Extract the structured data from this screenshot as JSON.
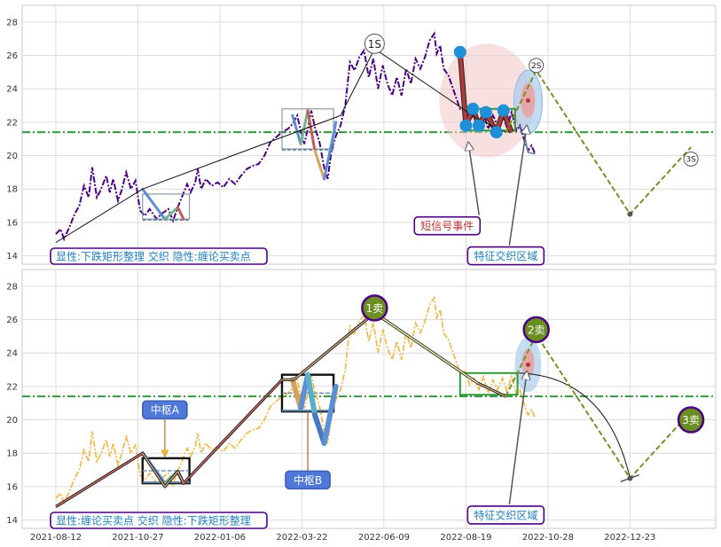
{
  "chart_data": [
    {
      "type": "line",
      "panel": "top",
      "ylim": [
        13.5,
        29
      ],
      "yticks": [
        14,
        16,
        18,
        20,
        22,
        24,
        26,
        28
      ],
      "grid": true,
      "reference_line": 21.4,
      "price": [
        [
          0,
          15.3
        ],
        [
          4,
          15.6
        ],
        [
          7,
          15.0
        ],
        [
          12,
          15.8
        ],
        [
          16,
          16.5
        ],
        [
          20,
          17.0
        ],
        [
          24,
          18.2
        ],
        [
          28,
          17.5
        ],
        [
          31,
          19.3
        ],
        [
          35,
          17.5
        ],
        [
          38,
          17.9
        ],
        [
          43,
          18.8
        ],
        [
          46,
          17.8
        ],
        [
          49,
          18.6
        ],
        [
          53,
          17.3
        ],
        [
          56,
          17.9
        ],
        [
          60,
          19.0
        ],
        [
          64,
          18.0
        ],
        [
          68,
          18.5
        ],
        [
          72,
          16.7
        ],
        [
          76,
          16.4
        ],
        [
          80,
          16.8
        ],
        [
          86,
          16.2
        ],
        [
          90,
          16.5
        ],
        [
          96,
          16.8
        ],
        [
          100,
          16.1
        ],
        [
          104,
          16.9
        ],
        [
          108,
          17.6
        ],
        [
          112,
          18.3
        ],
        [
          115,
          17.8
        ],
        [
          119,
          18.4
        ],
        [
          121,
          19.2
        ],
        [
          124,
          18.0
        ],
        [
          128,
          18.6
        ],
        [
          133,
          18.2
        ],
        [
          138,
          18.4
        ],
        [
          143,
          18.1
        ],
        [
          148,
          18.6
        ],
        [
          153,
          18.3
        ],
        [
          158,
          18.8
        ],
        [
          163,
          19.2
        ],
        [
          168,
          19.4
        ],
        [
          173,
          19.5
        ],
        [
          178,
          20.0
        ],
        [
          183,
          20.8
        ],
        [
          188,
          21.1
        ],
        [
          193,
          21.4
        ],
        [
          198,
          21.6
        ],
        [
          202,
          21.9
        ],
        [
          206,
          22.4
        ],
        [
          209,
          21.5
        ],
        [
          212,
          20.7
        ],
        [
          215,
          21.6
        ],
        [
          218,
          22.7
        ],
        [
          221,
          21.7
        ],
        [
          225,
          20.8
        ],
        [
          229,
          19.3
        ],
        [
          232,
          18.6
        ],
        [
          235,
          20.2
        ],
        [
          239,
          21.2
        ],
        [
          243,
          21.8
        ],
        [
          247,
          23.0
        ],
        [
          251,
          25.6
        ],
        [
          255,
          25.1
        ],
        [
          259,
          25.9
        ],
        [
          263,
          26.3
        ],
        [
          267,
          24.7
        ],
        [
          271,
          25.8
        ],
        [
          275,
          24.0
        ],
        [
          279,
          25.4
        ],
        [
          283,
          24.3
        ],
        [
          287,
          23.6
        ],
        [
          291,
          24.7
        ],
        [
          295,
          23.6
        ],
        [
          299,
          25.2
        ],
        [
          303,
          24.3
        ],
        [
          307,
          25.8
        ],
        [
          311,
          25.2
        ],
        [
          315,
          25.9
        ],
        [
          319,
          26.9
        ],
        [
          323,
          27.3
        ],
        [
          325,
          26.1
        ],
        [
          328,
          26.6
        ],
        [
          331,
          25.2
        ],
        [
          335,
          24.8
        ],
        [
          338,
          24.2
        ],
        [
          341,
          23.6
        ],
        [
          345,
          22.8
        ],
        [
          349,
          22.9
        ],
        [
          353,
          22.1
        ],
        [
          357,
          22.5
        ],
        [
          361,
          21.8
        ],
        [
          365,
          22.6
        ],
        [
          369,
          21.6
        ],
        [
          373,
          22.4
        ],
        [
          377,
          21.8
        ],
        [
          381,
          22.5
        ],
        [
          385,
          21.7
        ],
        [
          389,
          22.6
        ],
        [
          393,
          21.5
        ],
        [
          396,
          21.8
        ],
        [
          399,
          21.1
        ],
        [
          403,
          20.3
        ],
        [
          406,
          20.6
        ],
        [
          409,
          20.1
        ]
      ],
      "trend": [
        [
          0,
          14.8
        ],
        [
          74,
          18.0
        ],
        [
          243,
          22.4
        ],
        [
          272,
          26.4
        ],
        [
          360,
          22.2
        ],
        [
          384,
          21.4
        ]
      ],
      "forecast": [
        [
          384,
          21.4
        ],
        [
          410,
          25.1
        ],
        [
          490,
          16.5
        ],
        [
          542,
          20.5
        ]
      ],
      "box1": {
        "x0": 74,
        "x1": 114,
        "y0": 16.2,
        "y1": 17.7
      },
      "box1_pen": [
        [
          74,
          18.0
        ],
        [
          93,
          16.2
        ],
        [
          104,
          16.9
        ],
        [
          109,
          16.2
        ]
      ],
      "box2": {
        "x0": 193,
        "x1": 237,
        "y0": 20.4,
        "y1": 22.8
      },
      "box2_pen": [
        [
          202,
          22.4
        ],
        [
          209,
          20.7
        ],
        [
          215,
          22.7
        ],
        [
          221,
          20.3
        ],
        [
          229,
          18.6
        ],
        [
          239,
          22.0
        ]
      ],
      "box3": {
        "x0": 349,
        "x1": 392,
        "y0": 21.5,
        "y1": 22.8
      },
      "box3_pen": [
        [
          345,
          26.2
        ],
        [
          350,
          21.8
        ],
        [
          356,
          22.8
        ],
        [
          361,
          21.8
        ],
        [
          367,
          22.6
        ],
        [
          376,
          21.4
        ],
        [
          382,
          22.7
        ],
        [
          386,
          21.9
        ],
        [
          389,
          21.4
        ]
      ],
      "dots": [
        [
          345,
          26.2
        ],
        [
          350,
          21.8
        ],
        [
          356,
          22.8
        ],
        [
          361,
          21.8
        ],
        [
          367,
          22.6
        ],
        [
          376,
          21.4
        ],
        [
          382,
          22.7
        ]
      ],
      "labels": [
        {
          "text": "1S",
          "x": 272,
          "y": 26.7
        },
        {
          "text": "2S",
          "x": 410,
          "y": 25.4
        },
        {
          "text": "3S",
          "x": 542,
          "y": 19.8
        }
      ],
      "annotations": [
        {
          "text": "短信号事件",
          "x": 334,
          "y": 15.8
        },
        {
          "text": "特征交织区域",
          "x": 384,
          "y": 14.0
        }
      ],
      "note": "显性:下跌矩形整理 交织 隐性:缠论买卖点"
    },
    {
      "type": "line",
      "panel": "bottom",
      "ylim": [
        13.5,
        29
      ],
      "yticks": [
        14,
        16,
        18,
        20,
        22,
        24,
        26,
        28
      ],
      "grid": true,
      "reference_line": 21.4,
      "trend": [
        [
          0,
          14.8
        ],
        [
          74,
          18.0
        ],
        [
          93,
          16.0
        ],
        [
          104,
          16.9
        ],
        [
          109,
          16.2
        ],
        [
          193,
          22.4
        ],
        [
          203,
          22.4
        ],
        [
          272,
          26.4
        ],
        [
          360,
          22.2
        ],
        [
          384,
          21.4
        ]
      ],
      "forecast": [
        [
          384,
          21.4
        ],
        [
          410,
          25.1
        ],
        [
          490,
          16.5
        ],
        [
          542,
          20.5
        ]
      ],
      "box1": {
        "x0": 74,
        "x1": 114,
        "y0": 16.2,
        "y1": 17.7
      },
      "box2": {
        "x0": 193,
        "x1": 237,
        "y0": 20.5,
        "y1": 22.7
      },
      "box3": {
        "x0": 345,
        "x1": 394,
        "y0": 21.5,
        "y1": 22.8
      },
      "labels": [
        {
          "text": "1卖",
          "x": 272,
          "y": 26.7
        },
        {
          "text": "2卖",
          "x": 410,
          "y": 25.4
        },
        {
          "text": "3卖",
          "x": 542,
          "y": 20.0
        }
      ],
      "annotations": [
        {
          "text": "中枢A",
          "x": 93,
          "y": 20.6
        },
        {
          "text": "中枢B",
          "x": 215,
          "y": 16.4
        },
        {
          "text": "特征交织区域",
          "x": 384,
          "y": 14.3
        }
      ],
      "note": "显性:缠论买卖点 交织 隐性:下跌矩形整理",
      "xtick_positions": [
        0,
        70,
        140,
        210,
        280,
        350,
        420,
        490
      ],
      "xtick_labels": [
        "2021-08-12",
        "2021-10-27",
        "2022-01-06",
        "2022-03-22",
        "2022-06-09",
        "2022-08-19",
        "2022-10-28",
        "2022-12-23"
      ]
    }
  ],
  "colors": {
    "price_top": "#4b0082",
    "price_bottom": "#f0b63c",
    "reference": "#2e9a3a",
    "forecast": "#7a8f2a",
    "label_fill": "#6b8e23",
    "label_border": "#4b0082",
    "box_green": "#2e9a3a",
    "box_steel": "#5a7fa0",
    "dot": "#1f8fd8",
    "annot_red": "#c0302b",
    "annot_blue": "#1f7fbf",
    "pill_blue": "#4f78d8"
  }
}
